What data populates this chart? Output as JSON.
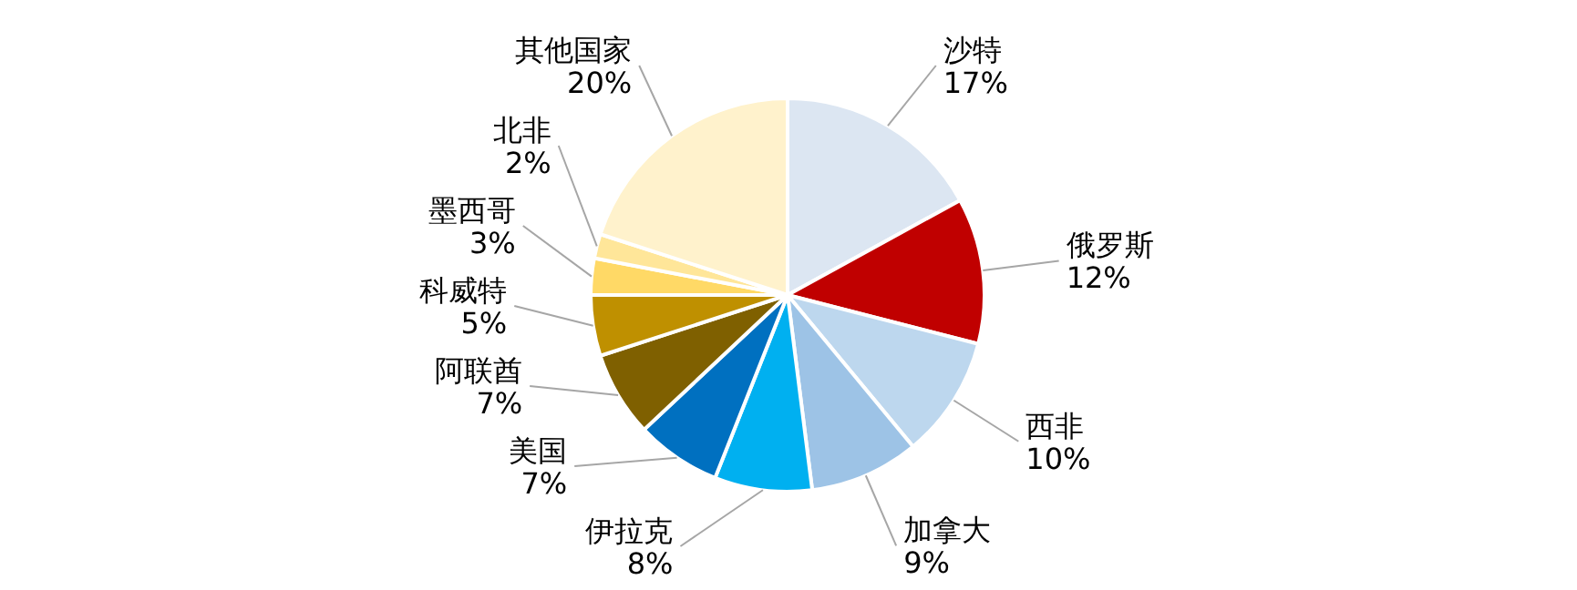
{
  "chart_data": {
    "type": "pie",
    "categories": [
      "沙特",
      "俄罗斯",
      "西非",
      "加拿大",
      "伊拉克",
      "美国",
      "阿联酋",
      "科威特",
      "墨西哥",
      "北非",
      "其他国家"
    ],
    "values": [
      17,
      12,
      10,
      9,
      8,
      7,
      7,
      5,
      3,
      2,
      20
    ],
    "value_labels": [
      "17%",
      "12%",
      "10%",
      "9%",
      "8%",
      "7%",
      "7%",
      "5%",
      "3%",
      "2%",
      "20%"
    ],
    "colors": [
      "#dce6f2",
      "#c00000",
      "#bdd7ee",
      "#9dc3e6",
      "#00b0f0",
      "#0070c0",
      "#7f6000",
      "#bf9000",
      "#ffd966",
      "#ffe699",
      "#fff2cc"
    ]
  }
}
